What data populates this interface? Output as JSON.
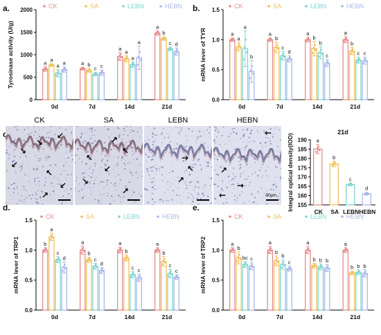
{
  "panel_labels": {
    "a": "a.",
    "b": "b.",
    "c": "c.",
    "d": "d.",
    "e": "e."
  },
  "groups": [
    "CK",
    "SA",
    "LEBN",
    "HEBN"
  ],
  "colors": {
    "CK": "#e78b8b",
    "SA": "#f0c05a",
    "LEBN": "#7fd4d0",
    "HEBN": "#a9b7ea"
  },
  "histology": {
    "labels": [
      "CK",
      "SA",
      "LEBN",
      "HEBN"
    ],
    "scale_bar": "50μm"
  },
  "chart_data": [
    {
      "id": "a",
      "type": "bar",
      "title": "",
      "xlabel": "",
      "ylabel": "Tyrosinase activity (U/g)",
      "ylim": [
        0,
        2000
      ],
      "yticks": [
        0,
        500,
        1000,
        1500,
        2000
      ],
      "categories": [
        "0d",
        "7d",
        "14d",
        "21d"
      ],
      "series": [
        {
          "name": "CK",
          "values": [
            680,
            690,
            960,
            1480
          ],
          "err": [
            50,
            30,
            90,
            50
          ],
          "sig": [
            "a",
            "a",
            "a",
            "a"
          ]
        },
        {
          "name": "SA",
          "values": [
            770,
            650,
            910,
            1360
          ],
          "err": [
            30,
            40,
            70,
            40
          ],
          "sig": [
            "a",
            "b",
            "a",
            "b"
          ]
        },
        {
          "name": "LEBN",
          "values": [
            590,
            570,
            780,
            1130
          ],
          "err": [
            80,
            40,
            60,
            40
          ],
          "sig": [
            "a",
            "c",
            "a",
            "c"
          ]
        },
        {
          "name": "HEBN",
          "values": [
            670,
            600,
            930,
            1070
          ],
          "err": [
            60,
            60,
            260,
            80
          ],
          "sig": [
            "a",
            "c",
            "a",
            "d"
          ]
        }
      ]
    },
    {
      "id": "b",
      "type": "bar",
      "title": "",
      "xlabel": "",
      "ylabel": "mRNA lever of TYR",
      "ylim": [
        0,
        1.5
      ],
      "yticks": [
        0.0,
        0.5,
        1.0,
        1.5
      ],
      "categories": [
        "0d",
        "7d",
        "14d",
        "21d"
      ],
      "series": [
        {
          "name": "CK",
          "values": [
            1.0,
            1.0,
            1.0,
            1.0
          ],
          "err": [
            0.03,
            0.03,
            0.04,
            0.05
          ],
          "sig": [
            "a",
            "a",
            "a",
            "a"
          ]
        },
        {
          "name": "SA",
          "values": [
            0.88,
            0.87,
            0.85,
            0.81
          ],
          "err": [
            0.07,
            0.09,
            0.12,
            0.06
          ],
          "sig": [
            "a",
            "b",
            "b",
            "b"
          ]
        },
        {
          "name": "LEBN",
          "values": [
            0.85,
            0.73,
            0.78,
            0.66
          ],
          "err": [
            0.3,
            0.07,
            0.1,
            0.05
          ],
          "sig": [
            "a",
            "c",
            "b",
            "c"
          ]
        },
        {
          "name": "HEBN",
          "values": [
            0.47,
            0.68,
            0.61,
            0.65
          ],
          "err": [
            0.18,
            0.05,
            0.06,
            0.06
          ],
          "sig": [
            "b",
            "d",
            "c",
            "c"
          ]
        }
      ]
    },
    {
      "id": "c21",
      "type": "bar",
      "title": "21d",
      "xlabel": "",
      "ylabel": "Integral optical density(IOD)",
      "ylim": [
        155,
        190
      ],
      "yticks": [
        155,
        160,
        165,
        170,
        175,
        180,
        185,
        190
      ],
      "categories": [
        "CK",
        "SA",
        "LEBN",
        "HEBN"
      ],
      "series": [
        {
          "name": "IOD",
          "values": [
            185,
            177,
            166,
            161
          ],
          "err": [
            2.5,
            1.5,
            0.8,
            0.8
          ],
          "sig": [
            "a",
            "b",
            "c",
            "d"
          ]
        }
      ]
    },
    {
      "id": "d",
      "type": "bar",
      "title": "",
      "xlabel": "",
      "ylabel": "mRNA lever of TRP1",
      "ylim": [
        0,
        1.5
      ],
      "yticks": [
        0.0,
        0.5,
        1.0,
        1.5
      ],
      "categories": [
        "0d",
        "7d",
        "14d",
        "21d"
      ],
      "series": [
        {
          "name": "CK",
          "values": [
            1.0,
            1.0,
            1.0,
            1.0
          ],
          "err": [
            0.04,
            0.07,
            0.05,
            0.04
          ],
          "sig": [
            "b",
            "a",
            "a",
            "a"
          ]
        },
        {
          "name": "SA",
          "values": [
            1.22,
            0.84,
            0.87,
            0.81
          ],
          "err": [
            0.06,
            0.04,
            0.05,
            0.08
          ],
          "sig": [
            "a",
            "b",
            "b",
            "b"
          ]
        },
        {
          "name": "LEBN",
          "values": [
            0.84,
            0.73,
            0.59,
            0.61
          ],
          "err": [
            0.05,
            0.05,
            0.05,
            0.07
          ],
          "sig": [
            "c",
            "c",
            "c",
            "c"
          ]
        },
        {
          "name": "HEBN",
          "values": [
            0.71,
            0.66,
            0.54,
            0.55
          ],
          "err": [
            0.09,
            0.05,
            0.06,
            0.04
          ],
          "sig": [
            "d",
            "d",
            "c",
            "c"
          ]
        }
      ]
    },
    {
      "id": "e",
      "type": "bar",
      "title": "",
      "xlabel": "",
      "ylabel": "mRNA lever of TRP2",
      "ylim": [
        0,
        1.5
      ],
      "yticks": [
        0.0,
        0.5,
        1.0,
        1.5
      ],
      "categories": [
        "0d",
        "7d",
        "14d",
        "21d"
      ],
      "series": [
        {
          "name": "CK",
          "values": [
            1.0,
            1.0,
            1.0,
            1.0
          ],
          "err": [
            0.04,
            0.06,
            0.06,
            0.04
          ],
          "sig": [
            "a",
            "a",
            "a",
            "a"
          ]
        },
        {
          "name": "SA",
          "values": [
            0.87,
            0.82,
            0.74,
            0.62
          ],
          "err": [
            0.1,
            0.08,
            0.04,
            0.03
          ],
          "sig": [
            "b",
            "b",
            "b",
            "b"
          ]
        },
        {
          "name": "LEBN",
          "values": [
            0.76,
            0.76,
            0.72,
            0.63
          ],
          "err": [
            0.05,
            0.08,
            0.05,
            0.04
          ],
          "sig": [
            "bc",
            "b",
            "b",
            "b"
          ]
        },
        {
          "name": "HEBN",
          "values": [
            0.73,
            0.69,
            0.7,
            0.61
          ],
          "err": [
            0.06,
            0.04,
            0.06,
            0.06
          ],
          "sig": [
            "c",
            "c",
            "b",
            "b"
          ]
        }
      ]
    }
  ]
}
